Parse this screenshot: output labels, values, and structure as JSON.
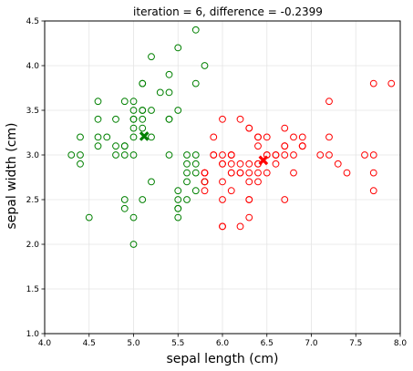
{
  "chart_data": {
    "type": "scatter",
    "title": "iteration = 6, difference = -0.2399",
    "xlabel": "sepal length (cm)",
    "ylabel": "sepal width (cm)",
    "xlim": [
      4.0,
      8.0
    ],
    "ylim": [
      1.0,
      4.5
    ],
    "grid": true,
    "xticks": [
      "4.0",
      "4.5",
      "5.0",
      "5.5",
      "6.0",
      "6.5",
      "7.0",
      "7.5",
      "8.0"
    ],
    "yticks": [
      "1.0",
      "1.5",
      "2.0",
      "2.5",
      "3.0",
      "3.5",
      "4.0",
      "4.5"
    ],
    "series": [
      {
        "color": "#008000",
        "marker": "open-circle",
        "points": [
          [
            5.7,
            4.4
          ],
          [
            5.5,
            4.2
          ],
          [
            5.2,
            4.1
          ],
          [
            5.8,
            4.0
          ],
          [
            5.4,
            3.9
          ],
          [
            5.1,
            3.8
          ],
          [
            5.1,
            3.8
          ],
          [
            5.7,
            3.8
          ],
          [
            5.3,
            3.7
          ],
          [
            5.4,
            3.7
          ],
          [
            4.6,
            3.6
          ],
          [
            5.0,
            3.6
          ],
          [
            4.9,
            3.6
          ],
          [
            5.1,
            3.5
          ],
          [
            5.0,
            3.5
          ],
          [
            5.2,
            3.5
          ],
          [
            5.5,
            3.5
          ],
          [
            5.1,
            3.5
          ],
          [
            5.0,
            3.4
          ],
          [
            5.4,
            3.4
          ],
          [
            5.4,
            3.4
          ],
          [
            4.6,
            3.4
          ],
          [
            4.8,
            3.4
          ],
          [
            5.0,
            3.4
          ],
          [
            5.1,
            3.4
          ],
          [
            5.0,
            3.3
          ],
          [
            5.1,
            3.3
          ],
          [
            4.4,
            3.2
          ],
          [
            4.6,
            3.2
          ],
          [
            4.7,
            3.2
          ],
          [
            5.0,
            3.2
          ],
          [
            5.2,
            3.2
          ],
          [
            4.6,
            3.1
          ],
          [
            4.8,
            3.1
          ],
          [
            4.9,
            3.1
          ],
          [
            4.9,
            3.1
          ],
          [
            4.3,
            3.0
          ],
          [
            4.4,
            3.0
          ],
          [
            4.8,
            3.0
          ],
          [
            4.9,
            3.0
          ],
          [
            5.0,
            3.0
          ],
          [
            5.4,
            3.0
          ],
          [
            5.6,
            3.0
          ],
          [
            5.7,
            3.0
          ],
          [
            5.6,
            2.9
          ],
          [
            5.7,
            2.9
          ],
          [
            4.4,
            2.9
          ],
          [
            5.6,
            2.8
          ],
          [
            5.7,
            2.8
          ],
          [
            5.2,
            2.7
          ],
          [
            5.8,
            2.7
          ],
          [
            5.6,
            2.7
          ],
          [
            5.5,
            2.6
          ],
          [
            5.7,
            2.6
          ],
          [
            4.9,
            2.5
          ],
          [
            5.1,
            2.5
          ],
          [
            5.6,
            2.5
          ],
          [
            5.5,
            2.5
          ],
          [
            4.9,
            2.4
          ],
          [
            5.5,
            2.4
          ],
          [
            5.5,
            2.4
          ],
          [
            4.5,
            2.3
          ],
          [
            5.0,
            2.3
          ],
          [
            5.5,
            2.3
          ],
          [
            5.0,
            2.0
          ]
        ]
      },
      {
        "color": "#ff0000",
        "marker": "open-circle",
        "points": [
          [
            7.7,
            3.8
          ],
          [
            7.9,
            3.8
          ],
          [
            7.2,
            3.6
          ],
          [
            6.0,
            3.4
          ],
          [
            6.2,
            3.4
          ],
          [
            6.3,
            3.3
          ],
          [
            6.7,
            3.3
          ],
          [
            6.4,
            3.2
          ],
          [
            6.5,
            3.2
          ],
          [
            6.9,
            3.2
          ],
          [
            7.2,
            3.2
          ],
          [
            6.8,
            3.2
          ],
          [
            5.9,
            3.2
          ],
          [
            6.1,
            3.0
          ],
          [
            6.7,
            3.1
          ],
          [
            6.9,
            3.1
          ],
          [
            6.4,
            3.1
          ],
          [
            6.7,
            3.1
          ],
          [
            6.9,
            3.1
          ],
          [
            5.9,
            3.0
          ],
          [
            6.0,
            3.0
          ],
          [
            6.1,
            3.0
          ],
          [
            6.5,
            3.0
          ],
          [
            6.6,
            3.0
          ],
          [
            6.7,
            3.0
          ],
          [
            6.8,
            3.0
          ],
          [
            7.1,
            3.0
          ],
          [
            7.2,
            3.0
          ],
          [
            7.6,
            3.0
          ],
          [
            7.7,
            3.0
          ],
          [
            6.0,
            2.9
          ],
          [
            6.1,
            2.9
          ],
          [
            6.2,
            2.9
          ],
          [
            6.3,
            2.9
          ],
          [
            6.4,
            2.9
          ],
          [
            6.6,
            2.9
          ],
          [
            7.3,
            2.9
          ],
          [
            5.8,
            2.8
          ],
          [
            6.1,
            2.8
          ],
          [
            6.2,
            2.8
          ],
          [
            6.3,
            2.8
          ],
          [
            6.4,
            2.8
          ],
          [
            6.5,
            2.8
          ],
          [
            6.8,
            2.8
          ],
          [
            7.4,
            2.8
          ],
          [
            7.7,
            2.8
          ],
          [
            5.8,
            2.7
          ],
          [
            5.8,
            2.7
          ],
          [
            6.0,
            2.7
          ],
          [
            6.3,
            2.7
          ],
          [
            6.4,
            2.7
          ],
          [
            6.1,
            2.6
          ],
          [
            5.8,
            2.6
          ],
          [
            7.7,
            2.6
          ],
          [
            6.0,
            2.5
          ],
          [
            6.3,
            2.5
          ],
          [
            6.7,
            2.5
          ],
          [
            6.3,
            2.3
          ],
          [
            6.0,
            2.2
          ],
          [
            6.2,
            2.2
          ],
          [
            6.0,
            2.2
          ],
          [
            5.9,
            3.0
          ],
          [
            6.1,
            2.8
          ],
          [
            6.5,
            3.0
          ],
          [
            6.2,
            2.8
          ],
          [
            6.4,
            3.2
          ],
          [
            6.3,
            2.5
          ],
          [
            5.8,
            2.8
          ],
          [
            6.4,
            2.9
          ],
          [
            6.6,
            3.0
          ],
          [
            6.3,
            3.3
          ],
          [
            6.9,
            3.1
          ],
          [
            6.1,
            3.0
          ],
          [
            6.0,
            2.9
          ],
          [
            5.8,
            2.8
          ]
        ]
      }
    ],
    "centroids": [
      {
        "color": "#008000",
        "marker": "X",
        "x": 5.12,
        "y": 3.21
      },
      {
        "color": "#ff0000",
        "marker": "X",
        "x": 6.46,
        "y": 2.94
      }
    ]
  }
}
